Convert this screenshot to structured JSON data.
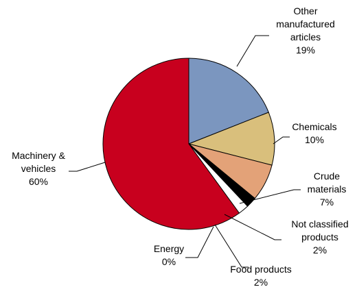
{
  "chart_data": {
    "type": "pie",
    "title": "",
    "start": "top, clockwise",
    "slices": [
      {
        "label": "Other manufactured articles",
        "lines": [
          "Other",
          "manufactured",
          "articles"
        ],
        "value": 19,
        "value_label": "19%",
        "color": "#7b96bf"
      },
      {
        "label": "Chemicals",
        "lines": [
          "Chemicals"
        ],
        "value": 10,
        "value_label": "10%",
        "color": "#d9bf7c"
      },
      {
        "label": "Crude materials",
        "lines": [
          "Crude",
          "materials"
        ],
        "value": 7,
        "value_label": "7%",
        "color": "#e3a278"
      },
      {
        "label": "Not classified products",
        "lines": [
          "Not classified",
          "products"
        ],
        "value": 2,
        "value_label": "2%",
        "color": "#000000"
      },
      {
        "label": "Food products",
        "lines": [
          "Food products"
        ],
        "value": 2,
        "value_label": "2%",
        "color": "#ffffff"
      },
      {
        "label": "Energy",
        "lines": [
          "Energy"
        ],
        "value": 0,
        "value_label": "0%",
        "color": "#ffffff"
      },
      {
        "label": "Machinery & vehicles",
        "lines": [
          "Machinery &",
          "vehicles"
        ],
        "value": 60,
        "value_label": "60%",
        "color": "#c8001e"
      }
    ]
  }
}
